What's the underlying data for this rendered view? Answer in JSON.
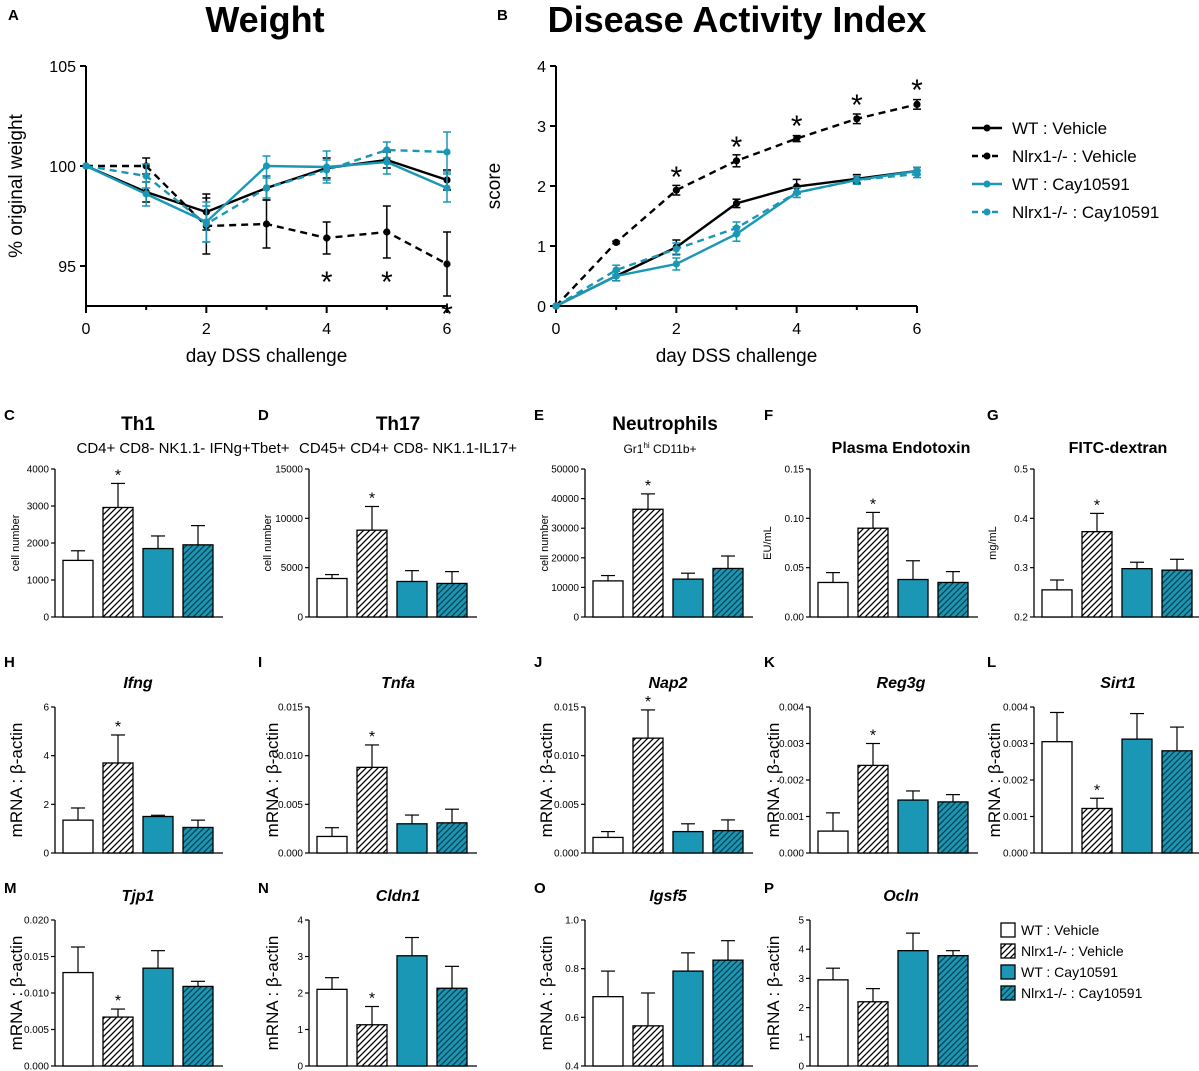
{
  "colors": {
    "wt": "#000000",
    "cay": "#1a97b5",
    "bar_fill_cay": "#1a97b5"
  },
  "patterns": {
    "hatch": "diagonal-hatch"
  },
  "chart_data": [
    {
      "id": "A",
      "letter": "A",
      "type": "line",
      "title": "Weight",
      "xlabel": "day DSS challenge",
      "ylabel": "% original weight",
      "xlim": [
        0,
        6
      ],
      "ylim": [
        93,
        105
      ],
      "xticks": [
        "0",
        "2",
        "4",
        "6"
      ],
      "yticks": [
        "95",
        "100",
        "105"
      ],
      "series": [
        {
          "name": "WT : Vehicle",
          "color": "#000000",
          "dashed": false,
          "x": [
            0,
            1,
            2,
            3,
            4,
            5,
            6
          ],
          "y": [
            100,
            98.7,
            97.7,
            98.9,
            99.9,
            100.3,
            99.3
          ],
          "err": [
            0,
            0.5,
            0.9,
            0.6,
            0.5,
            0.4,
            0.5
          ]
        },
        {
          "name": "Nlrx1-/- : Vehicle",
          "color": "#000000",
          "dashed": true,
          "x": [
            0,
            1,
            2,
            3,
            4,
            5,
            6
          ],
          "y": [
            100,
            100,
            97,
            97.1,
            96.4,
            96.7,
            95.1
          ],
          "err": [
            0,
            0.4,
            1.4,
            1.2,
            0.8,
            1.3,
            1.6
          ]
        },
        {
          "name": "WT : Cay10591",
          "color": "#1a97b5",
          "dashed": false,
          "x": [
            0,
            1,
            2,
            3,
            4,
            5,
            6
          ],
          "y": [
            100,
            98.6,
            97.2,
            100,
            99.95,
            100.2,
            98.9
          ],
          "err": [
            0,
            0.6,
            1.0,
            0.5,
            0.8,
            0.6,
            0.7
          ]
        },
        {
          "name": "Nlrx1-/- : Cay10591",
          "color": "#1a97b5",
          "dashed": true,
          "x": [
            0,
            1,
            2,
            3,
            4,
            5,
            6
          ],
          "y": [
            100,
            99.5,
            97.1,
            98.9,
            99.8,
            100.8,
            100.7
          ],
          "err": [
            0,
            0.6,
            0.9,
            0.5,
            0.5,
            0.4,
            1.0
          ]
        }
      ],
      "stars": [
        {
          "x": 4,
          "y": 94.5,
          "label": "*"
        },
        {
          "x": 5,
          "y": 94.5,
          "label": "*"
        },
        {
          "x": 6,
          "y": 92.9,
          "label": "*"
        }
      ]
    },
    {
      "id": "B",
      "letter": "B",
      "type": "line",
      "title": "Disease Activity Index",
      "xlabel": "day DSS challenge",
      "ylabel": "score",
      "xlim": [
        0,
        6
      ],
      "ylim": [
        0,
        4
      ],
      "xticks": [
        "0",
        "2",
        "4",
        "6"
      ],
      "yticks": [
        "0",
        "1",
        "2",
        "3",
        "4"
      ],
      "series": [
        {
          "name": "WT : Vehicle",
          "color": "#000000",
          "dashed": false,
          "x": [
            0,
            1,
            2,
            3,
            4,
            5,
            6
          ],
          "y": [
            0,
            0.5,
            0.98,
            1.71,
            1.99,
            2.12,
            2.25
          ],
          "err": [
            0,
            0.08,
            0.12,
            0.07,
            0.12,
            0.07,
            0.06
          ]
        },
        {
          "name": "Nlrx1-/- : Vehicle",
          "color": "#000000",
          "dashed": true,
          "x": [
            0,
            1,
            2,
            3,
            4,
            5,
            6
          ],
          "y": [
            0,
            1.06,
            1.93,
            2.42,
            2.79,
            3.12,
            3.36
          ],
          "err": [
            0,
            0.02,
            0.08,
            0.1,
            0.05,
            0.08,
            0.08
          ]
        },
        {
          "name": "WT : Cay10591",
          "color": "#1a97b5",
          "dashed": false,
          "x": [
            0,
            1,
            2,
            3,
            4,
            5,
            6
          ],
          "y": [
            0,
            0.5,
            0.7,
            1.2,
            1.89,
            2.1,
            2.25
          ],
          "err": [
            0,
            0.08,
            0.1,
            0.12,
            0.08,
            0.07,
            0.06
          ]
        },
        {
          "name": "Nlrx1-/- : Cay10591",
          "color": "#1a97b5",
          "dashed": true,
          "x": [
            0,
            1,
            2,
            3,
            4,
            5,
            6
          ],
          "y": [
            0,
            0.6,
            0.95,
            1.3,
            1.89,
            2.1,
            2.2
          ],
          "err": [
            0,
            0.08,
            0.1,
            0.1,
            0.08,
            0.07,
            0.06
          ]
        }
      ],
      "stars": [
        {
          "x": 2,
          "y": 2.25,
          "label": "*"
        },
        {
          "x": 3,
          "y": 2.75,
          "label": "*"
        },
        {
          "x": 4,
          "y": 3.1,
          "label": "*"
        },
        {
          "x": 5,
          "y": 3.45,
          "label": "*"
        },
        {
          "x": 6,
          "y": 3.7,
          "label": "*"
        }
      ]
    },
    {
      "id": "C",
      "letter": "C",
      "type": "bar",
      "title": "Th1",
      "subtitle": "CD4+ CD8- NK1.1- IFNg+Tbet+",
      "ylabel": "cell number",
      "ylim": [
        0,
        4000
      ],
      "yticks": [
        "0",
        "1000",
        "2000",
        "3000",
        "4000"
      ],
      "values": [
        1530,
        2960,
        1850,
        1950
      ],
      "errors": [
        260,
        650,
        340,
        520
      ],
      "stars": [
        1
      ]
    },
    {
      "id": "D",
      "letter": "D",
      "type": "bar",
      "title": "Th17",
      "subtitle": "CD45+ CD4+ CD8- NK1.1-IL17+",
      "ylabel": "cell number",
      "ylim": [
        0,
        15000
      ],
      "yticks": [
        "0",
        "5000",
        "10000",
        "15000"
      ],
      "values": [
        3900,
        8800,
        3600,
        3400
      ],
      "errors": [
        400,
        2400,
        1100,
        1200
      ],
      "stars": [
        1
      ]
    },
    {
      "id": "E",
      "letter": "E",
      "type": "bar",
      "title": "Neutrophils",
      "subtitle_main": "Gr1",
      "subtitle_sup": "hi",
      "subtitle_rest": " CD11b+",
      "ylabel": "cell number",
      "ylim": [
        0,
        50000
      ],
      "yticks": [
        "0",
        "10000",
        "20000",
        "30000",
        "40000",
        "50000"
      ],
      "values": [
        12200,
        36400,
        12800,
        16400
      ],
      "errors": [
        1800,
        5200,
        2000,
        4200
      ],
      "stars": [
        1
      ]
    },
    {
      "id": "F",
      "letter": "F",
      "type": "bar",
      "title": "Plasma Endotoxin",
      "ylabel": "EU/mL",
      "ylim": [
        0,
        0.15
      ],
      "yticks": [
        "0.00",
        "0.05",
        "0.10",
        "0.15"
      ],
      "values": [
        0.035,
        0.09,
        0.038,
        0.035
      ],
      "errors": [
        0.01,
        0.016,
        0.019,
        0.011
      ],
      "stars": [
        1
      ]
    },
    {
      "id": "G",
      "letter": "G",
      "type": "bar",
      "title": "FITC-dextran",
      "ylabel": "mg/mL",
      "ylim": [
        0.2,
        0.5
      ],
      "yticks": [
        "0.2",
        "0.3",
        "0.4",
        "0.5"
      ],
      "values": [
        0.255,
        0.373,
        0.298,
        0.295
      ],
      "errors": [
        0.02,
        0.037,
        0.013,
        0.022
      ],
      "stars": [
        1
      ]
    },
    {
      "id": "H",
      "letter": "H",
      "type": "bar",
      "title": "Ifng",
      "ylabel": "mRNA : β-actin",
      "ylim": [
        0,
        6
      ],
      "yticks": [
        "0",
        "2",
        "4",
        "6"
      ],
      "values": [
        1.35,
        3.7,
        1.5,
        1.05
      ],
      "errors": [
        0.5,
        1.15,
        0.05,
        0.3
      ],
      "stars": [
        1
      ]
    },
    {
      "id": "I",
      "letter": "I",
      "type": "bar",
      "title": "Tnfa",
      "ylabel": "mRNA : β-actin",
      "ylim": [
        0,
        0.015
      ],
      "yticks": [
        "0.000",
        "0.005",
        "0.010",
        "0.015"
      ],
      "values": [
        0.0017,
        0.0088,
        0.003,
        0.0031
      ],
      "errors": [
        0.0009,
        0.0023,
        0.0009,
        0.0014
      ],
      "stars": [
        1
      ]
    },
    {
      "id": "J",
      "letter": "J",
      "type": "bar",
      "title": "Nap2",
      "ylabel": "mRNA : β-actin",
      "ylim": [
        0,
        0.015
      ],
      "yticks": [
        "0.000",
        "0.005",
        "0.010",
        "0.015"
      ],
      "values": [
        0.0016,
        0.0118,
        0.0022,
        0.0023
      ],
      "errors": [
        0.0006,
        0.0029,
        0.0008,
        0.0011
      ],
      "stars": [
        1
      ]
    },
    {
      "id": "K",
      "letter": "K",
      "type": "bar",
      "title": "Reg3g",
      "ylabel": "mRNA : β-actin",
      "ylim": [
        0,
        0.004
      ],
      "yticks": [
        "0.000",
        "0.001",
        "0.002",
        "0.003",
        "0.004"
      ],
      "values": [
        0.0006,
        0.0024,
        0.00145,
        0.0014
      ],
      "errors": [
        0.0005,
        0.0006,
        0.00025,
        0.0002
      ],
      "stars": [
        1
      ]
    },
    {
      "id": "L",
      "letter": "L",
      "type": "bar",
      "title": "Sirt1",
      "ylabel": "mRNA : β-actin",
      "ylim": [
        0,
        0.004
      ],
      "yticks": [
        "0.000",
        "0.001",
        "0.002",
        "0.003",
        "0.004"
      ],
      "values": [
        0.00305,
        0.00122,
        0.00312,
        0.0028
      ],
      "errors": [
        0.0008,
        0.00028,
        0.0007,
        0.00065
      ],
      "stars": [
        1
      ]
    },
    {
      "id": "M",
      "letter": "M",
      "type": "bar",
      "title": "Tjp1",
      "ylabel": "mRNA : β-actin",
      "ylim": [
        0,
        0.02
      ],
      "yticks": [
        "0.000",
        "0.005",
        "0.010",
        "0.015",
        "0.020"
      ],
      "values": [
        0.0128,
        0.0067,
        0.0134,
        0.0109
      ],
      "errors": [
        0.0035,
        0.0011,
        0.0024,
        0.0007
      ],
      "stars": [
        1
      ]
    },
    {
      "id": "N",
      "letter": "N",
      "type": "bar",
      "title": "Cldn1",
      "ylabel": "mRNA : β-actin",
      "ylim": [
        0,
        4
      ],
      "yticks": [
        "0",
        "1",
        "2",
        "3",
        "4"
      ],
      "values": [
        2.1,
        1.13,
        3.02,
        2.13
      ],
      "errors": [
        0.32,
        0.5,
        0.5,
        0.6
      ],
      "stars": [
        1
      ]
    },
    {
      "id": "O",
      "letter": "O",
      "type": "bar",
      "title": "Igsf5",
      "ylabel": "mRNA : β-actin",
      "ylim": [
        0.4,
        1.0
      ],
      "yticks": [
        "0.4",
        "0.6",
        "0.8",
        "1.0"
      ],
      "values": [
        0.685,
        0.565,
        0.79,
        0.835
      ],
      "errors": [
        0.105,
        0.135,
        0.075,
        0.08
      ],
      "stars": []
    },
    {
      "id": "P",
      "letter": "P",
      "type": "bar",
      "title": "Ocln",
      "ylabel": "mRNA : β-actin",
      "ylim": [
        0,
        5
      ],
      "yticks": [
        "0",
        "1",
        "2",
        "3",
        "4",
        "5"
      ],
      "values": [
        2.95,
        2.2,
        3.95,
        3.78
      ],
      "errors": [
        0.4,
        0.45,
        0.6,
        0.17
      ],
      "stars": []
    }
  ],
  "legend_lines": [
    "WT : Vehicle",
    "Nlrx1-/- : Vehicle",
    "WT : Cay10591",
    "Nlrx1-/- : Cay10591"
  ],
  "legend_bars": [
    "WT : Vehicle",
    "Nlrx1-/- : Vehicle",
    "WT : Cay10591",
    "Nlrx1-/- : Cay10591"
  ]
}
